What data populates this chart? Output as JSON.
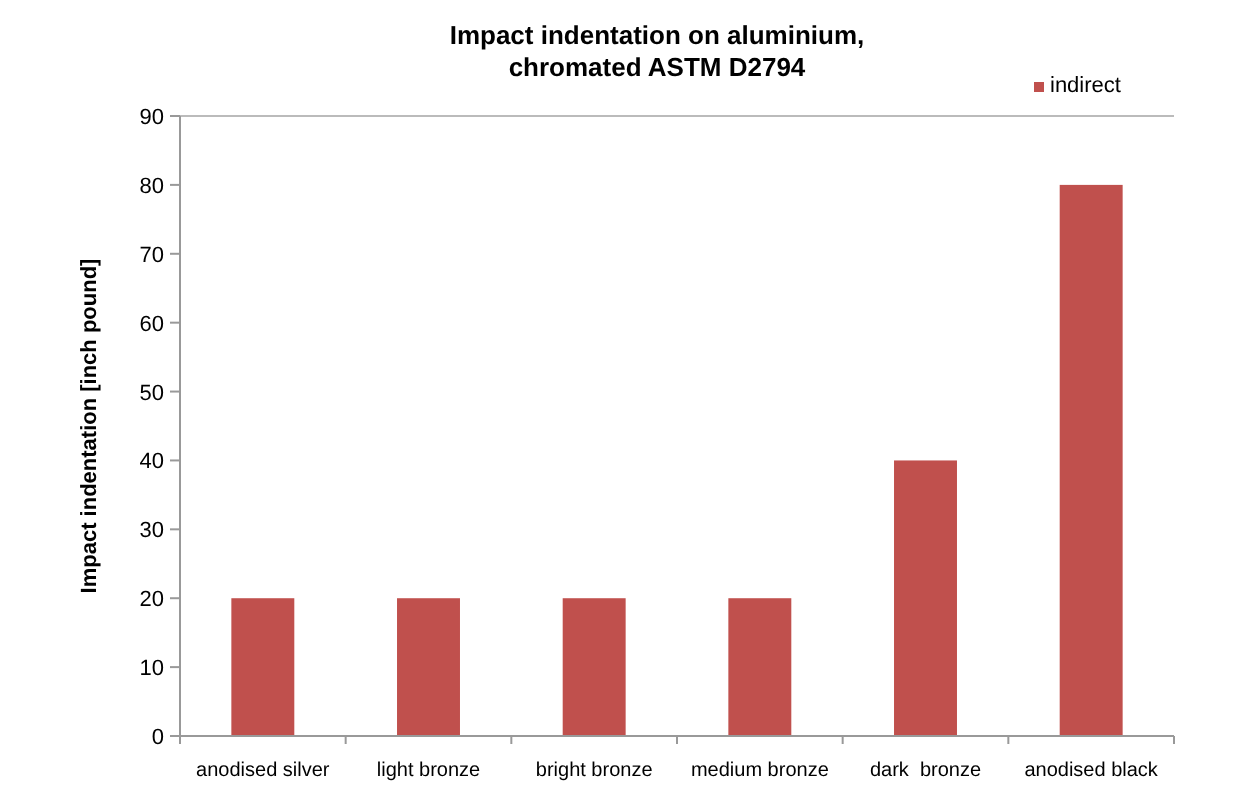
{
  "chart_data": {
    "type": "bar",
    "title": "Impact indentation on aluminium,\nchromated ASTM D2794",
    "ylabel": "Impact indentation [inch pound]",
    "categories": [
      "anodised silver",
      "light bronze",
      "bright bronze",
      "medium bronze",
      "dark  bronze",
      "anodised black"
    ],
    "series": [
      {
        "name": "indirect",
        "color": "#c0504d",
        "values": [
          20,
          20,
          20,
          20,
          40,
          80
        ]
      }
    ],
    "ylim": [
      0,
      90
    ],
    "yticks": [
      0,
      10,
      20,
      30,
      40,
      50,
      60,
      70,
      80,
      90
    ],
    "legend": "top right"
  }
}
